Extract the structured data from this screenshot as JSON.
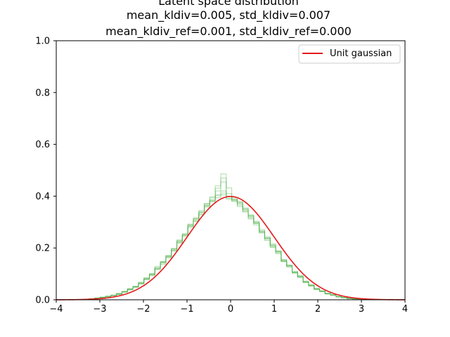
{
  "chart_data": {
    "type": "line",
    "title": [
      "Latent space distribution",
      "mean_kldiv=0.005, std_kldiv=0.007",
      "mean_kldiv_ref=0.001, std_kldiv_ref=0.000"
    ],
    "xlabel": "",
    "ylabel": "",
    "xlim": [
      -4,
      4
    ],
    "ylim": [
      0,
      1
    ],
    "xticks": [
      -4,
      -3,
      -2,
      -1,
      0,
      1,
      2,
      3,
      4
    ],
    "yticks": [
      0.0,
      0.2,
      0.4,
      0.6,
      0.8,
      1.0
    ],
    "grid": false,
    "legend": {
      "position": "top-right",
      "entries": [
        {
          "label": "Unit gaussian",
          "color": "#e41a1c"
        }
      ]
    },
    "reference_curve": {
      "name": "Unit gaussian",
      "color": "#e41a1c",
      "mean": 0,
      "std": 1
    },
    "histogram_color": "#4daf4a",
    "histograms": [
      {
        "values": [
          0.0,
          0.002,
          0.004,
          0.006,
          0.01,
          0.012,
          0.018,
          0.022,
          0.031,
          0.04,
          0.049,
          0.064,
          0.079,
          0.097,
          0.124,
          0.142,
          0.165,
          0.195,
          0.223,
          0.251,
          0.283,
          0.309,
          0.335,
          0.366,
          0.378,
          0.401,
          0.405,
          0.398,
          0.382,
          0.374,
          0.346,
          0.323,
          0.294,
          0.266,
          0.234,
          0.212,
          0.182,
          0.153,
          0.129,
          0.107,
          0.089,
          0.069,
          0.055,
          0.043,
          0.033,
          0.024,
          0.018,
          0.012,
          0.008,
          0.005,
          0.004,
          0.002,
          0.001,
          0.0
        ]
      },
      {
        "values": [
          0.001,
          0.002,
          0.003,
          0.007,
          0.009,
          0.014,
          0.016,
          0.025,
          0.029,
          0.043,
          0.05,
          0.068,
          0.085,
          0.101,
          0.118,
          0.148,
          0.17,
          0.188,
          0.231,
          0.244,
          0.292,
          0.316,
          0.328,
          0.372,
          0.386,
          0.394,
          0.412,
          0.392,
          0.389,
          0.365,
          0.352,
          0.316,
          0.3,
          0.259,
          0.24,
          0.205,
          0.188,
          0.147,
          0.133,
          0.103,
          0.092,
          0.066,
          0.058,
          0.04,
          0.035,
          0.022,
          0.02,
          0.011,
          0.009,
          0.004,
          0.003,
          0.002,
          0.001,
          0.0
        ]
      },
      {
        "values": [
          0.0,
          0.001,
          0.003,
          0.005,
          0.008,
          0.013,
          0.017,
          0.02,
          0.033,
          0.038,
          0.052,
          0.061,
          0.082,
          0.093,
          0.129,
          0.137,
          0.171,
          0.19,
          0.228,
          0.248,
          0.29,
          0.302,
          0.345,
          0.358,
          0.393,
          0.405,
          0.42,
          0.388,
          0.394,
          0.36,
          0.354,
          0.312,
          0.303,
          0.258,
          0.244,
          0.202,
          0.189,
          0.148,
          0.134,
          0.104,
          0.093,
          0.068,
          0.056,
          0.041,
          0.034,
          0.023,
          0.019,
          0.012,
          0.009,
          0.005,
          0.004,
          0.002,
          0.001,
          0.0
        ]
      },
      {
        "values": [
          0.0,
          0.002,
          0.004,
          0.006,
          0.009,
          0.012,
          0.018,
          0.024,
          0.03,
          0.041,
          0.048,
          0.063,
          0.08,
          0.099,
          0.121,
          0.145,
          0.162,
          0.199,
          0.219,
          0.256,
          0.279,
          0.314,
          0.33,
          0.37,
          0.383,
          0.431,
          0.47,
          0.432,
          0.385,
          0.379,
          0.341,
          0.328,
          0.289,
          0.271,
          0.229,
          0.216,
          0.178,
          0.156,
          0.126,
          0.11,
          0.086,
          0.071,
          0.053,
          0.044,
          0.031,
          0.025,
          0.017,
          0.013,
          0.007,
          0.006,
          0.003,
          0.002,
          0.001,
          0.0
        ]
      },
      {
        "values": [
          0.001,
          0.001,
          0.003,
          0.007,
          0.01,
          0.013,
          0.017,
          0.023,
          0.032,
          0.039,
          0.051,
          0.066,
          0.078,
          0.1,
          0.117,
          0.147,
          0.168,
          0.192,
          0.226,
          0.25,
          0.287,
          0.311,
          0.34,
          0.361,
          0.397,
          0.44,
          0.486,
          0.41,
          0.388,
          0.37,
          0.348,
          0.32,
          0.296,
          0.263,
          0.238,
          0.208,
          0.184,
          0.151,
          0.131,
          0.106,
          0.09,
          0.067,
          0.057,
          0.042,
          0.034,
          0.023,
          0.019,
          0.011,
          0.008,
          0.004,
          0.003,
          0.002,
          0.0,
          0.0
        ]
      },
      {
        "values": [
          0.0,
          0.001,
          0.004,
          0.005,
          0.009,
          0.014,
          0.016,
          0.021,
          0.031,
          0.042,
          0.049,
          0.062,
          0.083,
          0.096,
          0.123,
          0.143,
          0.166,
          0.196,
          0.221,
          0.252,
          0.285,
          0.305,
          0.338,
          0.364,
          0.381,
          0.42,
          0.455,
          0.4,
          0.38,
          0.376,
          0.339,
          0.325,
          0.297,
          0.264,
          0.236,
          0.21,
          0.186,
          0.15,
          0.132,
          0.105,
          0.087,
          0.072,
          0.054,
          0.04,
          0.032,
          0.025,
          0.018,
          0.013,
          0.008,
          0.006,
          0.003,
          0.002,
          0.001,
          0.0
        ]
      }
    ]
  }
}
